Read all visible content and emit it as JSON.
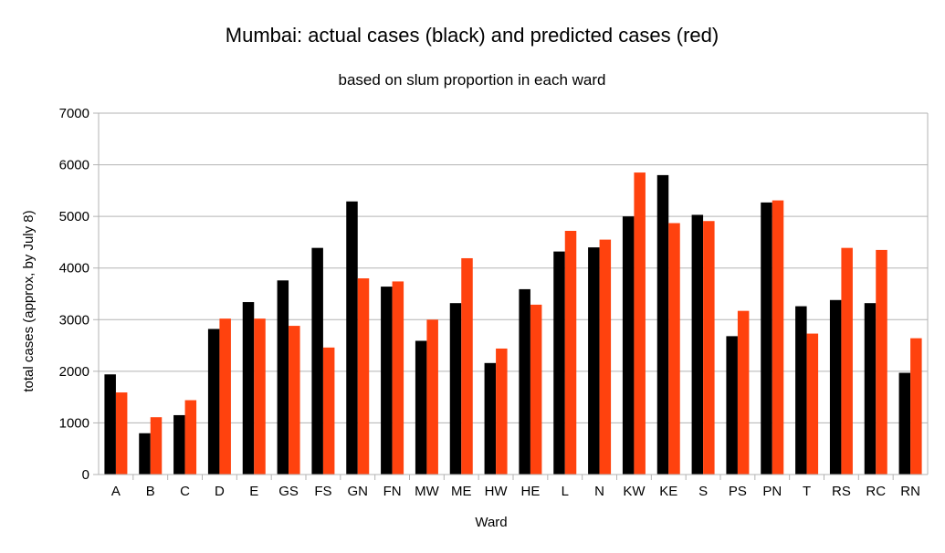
{
  "chart_data": {
    "type": "bar",
    "title": "Mumbai: actual cases (black) and predicted cases (red)",
    "subtitle": "based on slum proportion in each ward",
    "xlabel": "Ward",
    "ylabel": "total cases (approx, by July 8)",
    "ylim": [
      0,
      7000
    ],
    "yticks": [
      0,
      1000,
      2000,
      3000,
      4000,
      5000,
      6000,
      7000
    ],
    "grid": true,
    "legend": "none",
    "categories": [
      "A",
      "B",
      "C",
      "D",
      "E",
      "GS",
      "FS",
      "GN",
      "FN",
      "MW",
      "ME",
      "HW",
      "HE",
      "L",
      "N",
      "KW",
      "KE",
      "S",
      "PS",
      "PN",
      "T",
      "RS",
      "RC",
      "RN"
    ],
    "series": [
      {
        "color": "#000000",
        "values": [
          1940,
          800,
          1150,
          2820,
          3340,
          3760,
          4390,
          5290,
          3640,
          2590,
          3320,
          2160,
          3590,
          4320,
          4400,
          5000,
          5800,
          5030,
          2680,
          5270,
          3260,
          3380,
          3320,
          1970
        ]
      },
      {
        "color": "#ff420e",
        "values": [
          1590,
          1110,
          1440,
          3020,
          3020,
          2880,
          2460,
          3800,
          3740,
          3000,
          4190,
          2440,
          3290,
          4720,
          4550,
          5850,
          4870,
          4910,
          3170,
          5310,
          2730,
          4390,
          4350,
          2640
        ]
      }
    ]
  }
}
